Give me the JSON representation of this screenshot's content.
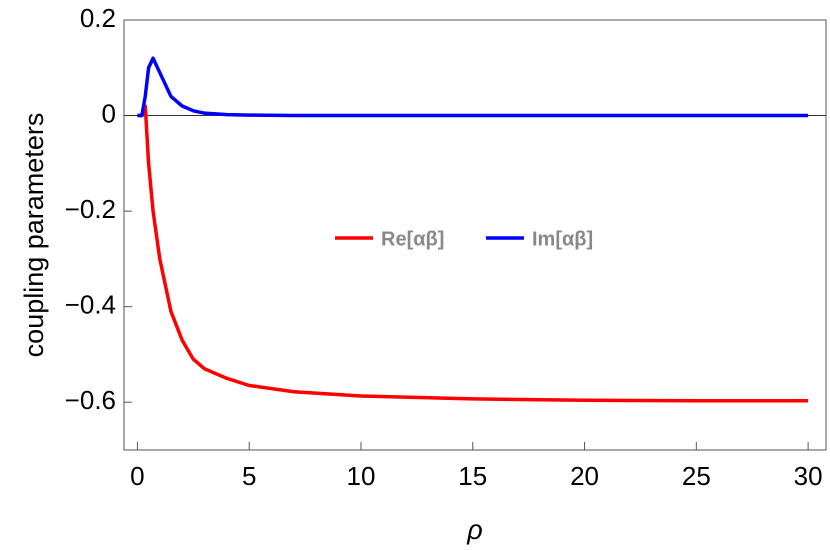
{
  "chart_data": {
    "type": "line",
    "x_label": "ρ",
    "y_label": "coupling parameters",
    "x": [
      0,
      0.2,
      0.35,
      0.5,
      0.7,
      1,
      1.5,
      2,
      2.5,
      3,
      4,
      5,
      7,
      10,
      15,
      20,
      25,
      30
    ],
    "series": [
      {
        "name": "Re[αβ]",
        "color": "#ff0000",
        "values": [
          0,
          0,
          0.02,
          -0.1,
          -0.2,
          -0.3,
          -0.41,
          -0.47,
          -0.51,
          -0.53,
          -0.55,
          -0.565,
          -0.578,
          -0.587,
          -0.593,
          -0.596,
          -0.597,
          -0.597
        ]
      },
      {
        "name": "Im[αβ]",
        "color": "#0000ff",
        "values": [
          0,
          0,
          0.04,
          0.1,
          0.12,
          0.09,
          0.04,
          0.02,
          0.01,
          0.005,
          0.002,
          0.001,
          0,
          0,
          0,
          0,
          0,
          0
        ]
      }
    ],
    "xlim": [
      -0.6,
      30.8
    ],
    "ylim": [
      -0.7,
      0.2
    ],
    "xticks": [
      0,
      5,
      10,
      15,
      20,
      25,
      30
    ],
    "yticks": [
      0.2,
      0,
      {
        "value": -0.2,
        "label": "−0.2"
      },
      {
        "value": -0.4,
        "label": "−0.4"
      },
      {
        "value": -0.6,
        "label": "−0.6"
      }
    ],
    "legend": "center"
  }
}
